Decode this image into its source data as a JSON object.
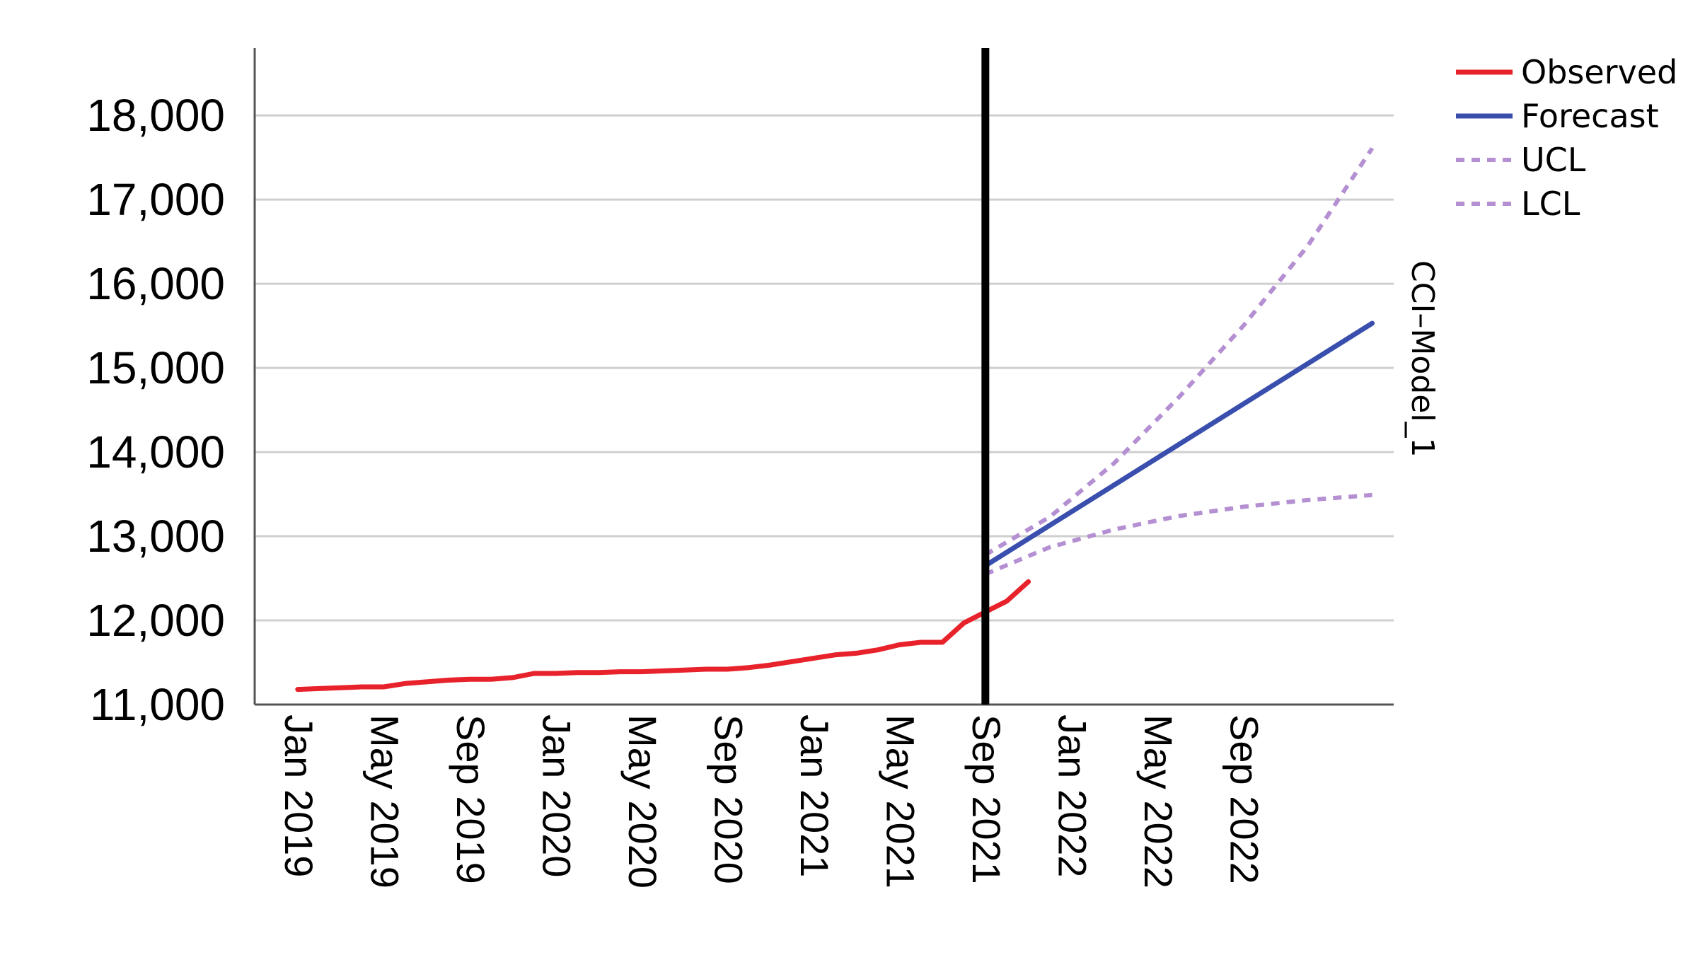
{
  "chart_data": {
    "type": "line",
    "title": "",
    "xlabel": "",
    "ylabel": "",
    "side_label": "CCI–Model_1",
    "ylim": [
      11000,
      18800
    ],
    "xlim": [
      "2018-11",
      "2023-04"
    ],
    "grid": true,
    "legend_position": "top-right",
    "y_ticks": [
      {
        "value": 11000,
        "label": "11,000"
      },
      {
        "value": 12000,
        "label": "12,000"
      },
      {
        "value": 13000,
        "label": "13,000"
      },
      {
        "value": 14000,
        "label": "14,000"
      },
      {
        "value": 15000,
        "label": "15,000"
      },
      {
        "value": 16000,
        "label": "16,000"
      },
      {
        "value": 17000,
        "label": "17,000"
      },
      {
        "value": 18000,
        "label": "18,000"
      }
    ],
    "x_ticks": [
      {
        "date": "2019-01",
        "label": "Jan 2019"
      },
      {
        "date": "2019-05",
        "label": "May 2019"
      },
      {
        "date": "2019-09",
        "label": "Sep 2019"
      },
      {
        "date": "2020-01",
        "label": "Jan 2020"
      },
      {
        "date": "2020-05",
        "label": "May 2020"
      },
      {
        "date": "2020-09",
        "label": "Sep 2020"
      },
      {
        "date": "2021-01",
        "label": "Jan 2021"
      },
      {
        "date": "2021-05",
        "label": "May 2021"
      },
      {
        "date": "2021-09",
        "label": "Sep 2021"
      },
      {
        "date": "2022-01",
        "label": "Jan 2022"
      },
      {
        "date": "2022-05",
        "label": "May 2022"
      },
      {
        "date": "2022-09",
        "label": "Sep 2022"
      }
    ],
    "reference_line": {
      "date": "2021-09",
      "color": "#000000"
    },
    "series": [
      {
        "name": "Observed",
        "color": "#e8222b",
        "dash": "solid",
        "points": [
          [
            "2019-01",
            11180
          ],
          [
            "2019-02",
            11190
          ],
          [
            "2019-03",
            11200
          ],
          [
            "2019-04",
            11210
          ],
          [
            "2019-05",
            11210
          ],
          [
            "2019-06",
            11250
          ],
          [
            "2019-07",
            11270
          ],
          [
            "2019-08",
            11290
          ],
          [
            "2019-09",
            11300
          ],
          [
            "2019-10",
            11300
          ],
          [
            "2019-11",
            11320
          ],
          [
            "2019-12",
            11370
          ],
          [
            "2020-01",
            11370
          ],
          [
            "2020-02",
            11380
          ],
          [
            "2020-03",
            11380
          ],
          [
            "2020-04",
            11390
          ],
          [
            "2020-05",
            11390
          ],
          [
            "2020-06",
            11400
          ],
          [
            "2020-07",
            11410
          ],
          [
            "2020-08",
            11420
          ],
          [
            "2020-09",
            11420
          ],
          [
            "2020-10",
            11440
          ],
          [
            "2020-11",
            11470
          ],
          [
            "2020-12",
            11510
          ],
          [
            "2021-01",
            11550
          ],
          [
            "2021-02",
            11590
          ],
          [
            "2021-03",
            11610
          ],
          [
            "2021-04",
            11650
          ],
          [
            "2021-05",
            11710
          ],
          [
            "2021-06",
            11740
          ],
          [
            "2021-07",
            11740
          ],
          [
            "2021-08",
            11970
          ],
          [
            "2021-09",
            12100
          ],
          [
            "2021-10",
            12230
          ],
          [
            "2021-11",
            12460
          ]
        ]
      },
      {
        "name": "Forecast",
        "color": "#3a4fad",
        "dash": "solid",
        "points": [
          [
            "2021-09",
            12650
          ],
          [
            "2023-03",
            15530
          ]
        ]
      },
      {
        "name": "UCL",
        "color": "#b48fd2",
        "dash": "dotted",
        "points": [
          [
            "2021-09",
            12780
          ],
          [
            "2021-12",
            13230
          ],
          [
            "2022-03",
            13870
          ],
          [
            "2022-06",
            14650
          ],
          [
            "2022-09",
            15500
          ],
          [
            "2022-12",
            16450
          ],
          [
            "2023-03",
            17610
          ]
        ]
      },
      {
        "name": "LCL",
        "color": "#b48fd2",
        "dash": "dotted",
        "points": [
          [
            "2021-09",
            12550
          ],
          [
            "2021-12",
            12870
          ],
          [
            "2022-03",
            13080
          ],
          [
            "2022-06",
            13240
          ],
          [
            "2022-09",
            13350
          ],
          [
            "2022-12",
            13430
          ],
          [
            "2023-03",
            13490
          ]
        ]
      }
    ]
  }
}
